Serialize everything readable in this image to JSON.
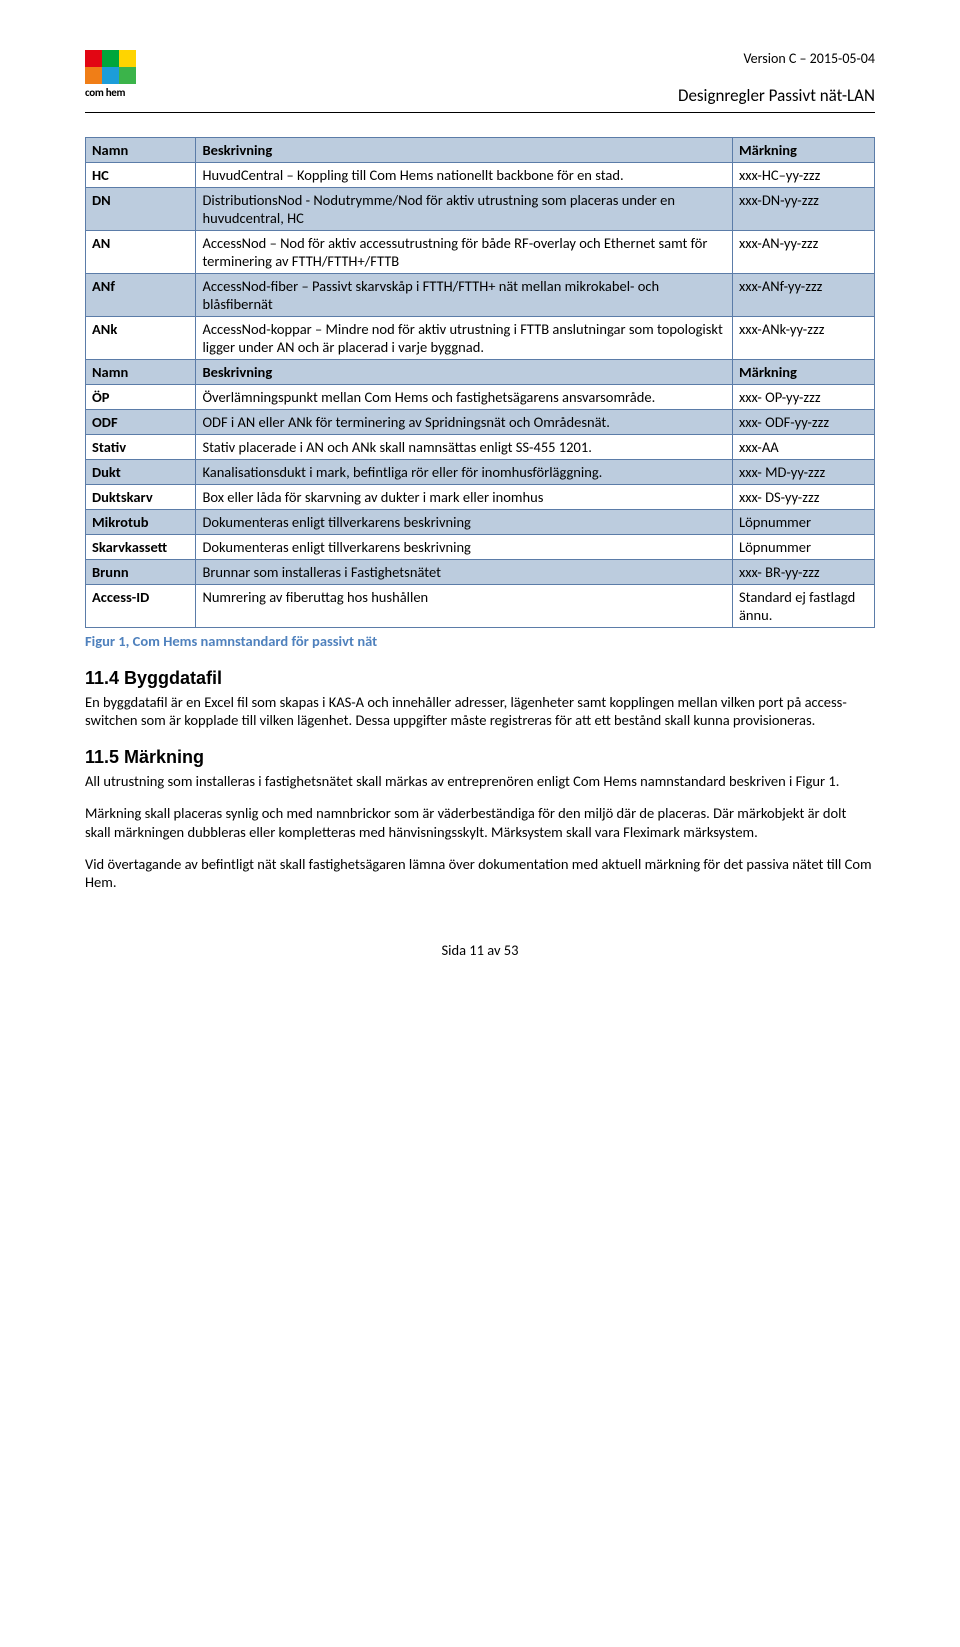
{
  "header": {
    "version_line": "Version C – 2015-05-04",
    "doc_title": "Designregler Passivt nät-LAN",
    "logo_caption": "com hem",
    "logo_colors": [
      "#e20613",
      "#00a63b",
      "#ffd400",
      "#f07e17",
      "#1c9dd9",
      "#3bb44a"
    ]
  },
  "table1": {
    "headers": [
      "Namn",
      "Beskrivning",
      "Märkning"
    ],
    "rows": [
      {
        "c0": "HC",
        "c1": "HuvudCentral – Koppling till Com Hems nationellt backbone för en stad.",
        "c2": "xxx-HC–yy-zzz",
        "shade": false
      },
      {
        "c0": "DN",
        "c1": "DistributionsNod - Nodutrymme/Nod för aktiv utrustning som placeras under en huvudcentral, HC",
        "c2": "xxx-DN-yy-zzz",
        "shade": true
      },
      {
        "c0": "AN",
        "c1": "AccessNod – Nod för aktiv accessutrustning för både RF-overlay och Ethernet samt för terminering av FTTH/FTTH+/FTTB",
        "c2": "xxx-AN-yy-zzz",
        "shade": false
      },
      {
        "c0": "ANf",
        "c1": "AccessNod-fiber – Passivt skarvskåp i FTTH/FTTH+ nät mellan mikrokabel- och blåsfibernät",
        "c2": "xxx-ANf-yy-zzz",
        "shade": true
      },
      {
        "c0": "ANk",
        "c1": "AccessNod-koppar – Mindre nod för aktiv utrustning i FTTB anslutningar som topologiskt ligger under AN och är placerad i varje byggnad.",
        "c2": "xxx-ANk-yy-zzz",
        "shade": false
      }
    ]
  },
  "table2": {
    "headers": [
      "Namn",
      "Beskrivning",
      "Märkning"
    ],
    "rows": [
      {
        "c0": "ÖP",
        "c1": "Överlämningspunkt mellan Com Hems och fastighetsägarens ansvarsområde.",
        "c2": "xxx- OP-yy-zzz",
        "shade": false
      },
      {
        "c0": "ODF",
        "c1": "ODF i AN eller ANk för terminering av Spridningsnät och Områdesnät.",
        "c2": "xxx- ODF-yy-zzz",
        "shade": true
      },
      {
        "c0": "Stativ",
        "c1": "Stativ placerade i AN och ANk skall namnsättas enligt SS-455 1201.",
        "c2": "xxx-AA",
        "shade": false
      },
      {
        "c0": "Dukt",
        "c1": "Kanalisationsdukt i mark, befintliga rör eller för inomhusförläggning.",
        "c2": "xxx- MD-yy-zzz",
        "shade": true
      },
      {
        "c0": "Duktskarv",
        "c1": "Box eller låda för skarvning av dukter i mark eller inomhus",
        "c2": "xxx- DS-yy-zzz",
        "shade": false
      },
      {
        "c0": "Mikrotub",
        "c1": "Dokumenteras enligt tillverkarens beskrivning",
        "c2": "Löpnummer",
        "shade": true
      },
      {
        "c0": "Skarvkassett",
        "c1": "Dokumenteras enligt tillverkarens beskrivning",
        "c2": "Löpnummer",
        "shade": false
      },
      {
        "c0": "Brunn",
        "c1": "Brunnar som installeras i Fastighetsnätet",
        "c2": "xxx- BR-yy-zzz",
        "shade": true
      },
      {
        "c0": "Access-ID",
        "c1": "Numrering av fiberuttag hos hushållen",
        "c2": "Standard ej fastlagd ännu.",
        "shade": false
      }
    ]
  },
  "caption": "Figur 1, Com Hems namnstandard för passivt nät",
  "sections": {
    "s1_title": "11.4 Byggdatafil",
    "s1_body": "En byggdatafil är en Excel fil som skapas i KAS-A och innehåller adresser, lägenheter samt kopplingen mellan vilken port på access-switchen som är kopplade till vilken lägenhet. Dessa uppgifter måste registreras för att ett bestånd skall kunna provisioneras.",
    "s2_title": "11.5 Märkning",
    "s2_body1": "All utrustning som installeras i fastighetsnätet skall märkas av entreprenören enligt Com Hems namnstandard beskriven i Figur 1.",
    "s2_body2": "Märkning skall placeras synlig och med namnbrickor som är väderbeständiga för den miljö där de placeras. Där märkobjekt är dolt skall märkningen dubbleras eller kompletteras med hänvisningsskylt. Märksystem skall vara Fleximark märksystem.",
    "s2_body3": "Vid övertagande av befintligt nät skall fastighetsägaren lämna över dokumentation med aktuell märkning för det passiva nätet till Com Hem."
  },
  "footer": "Sida 11 av 53"
}
